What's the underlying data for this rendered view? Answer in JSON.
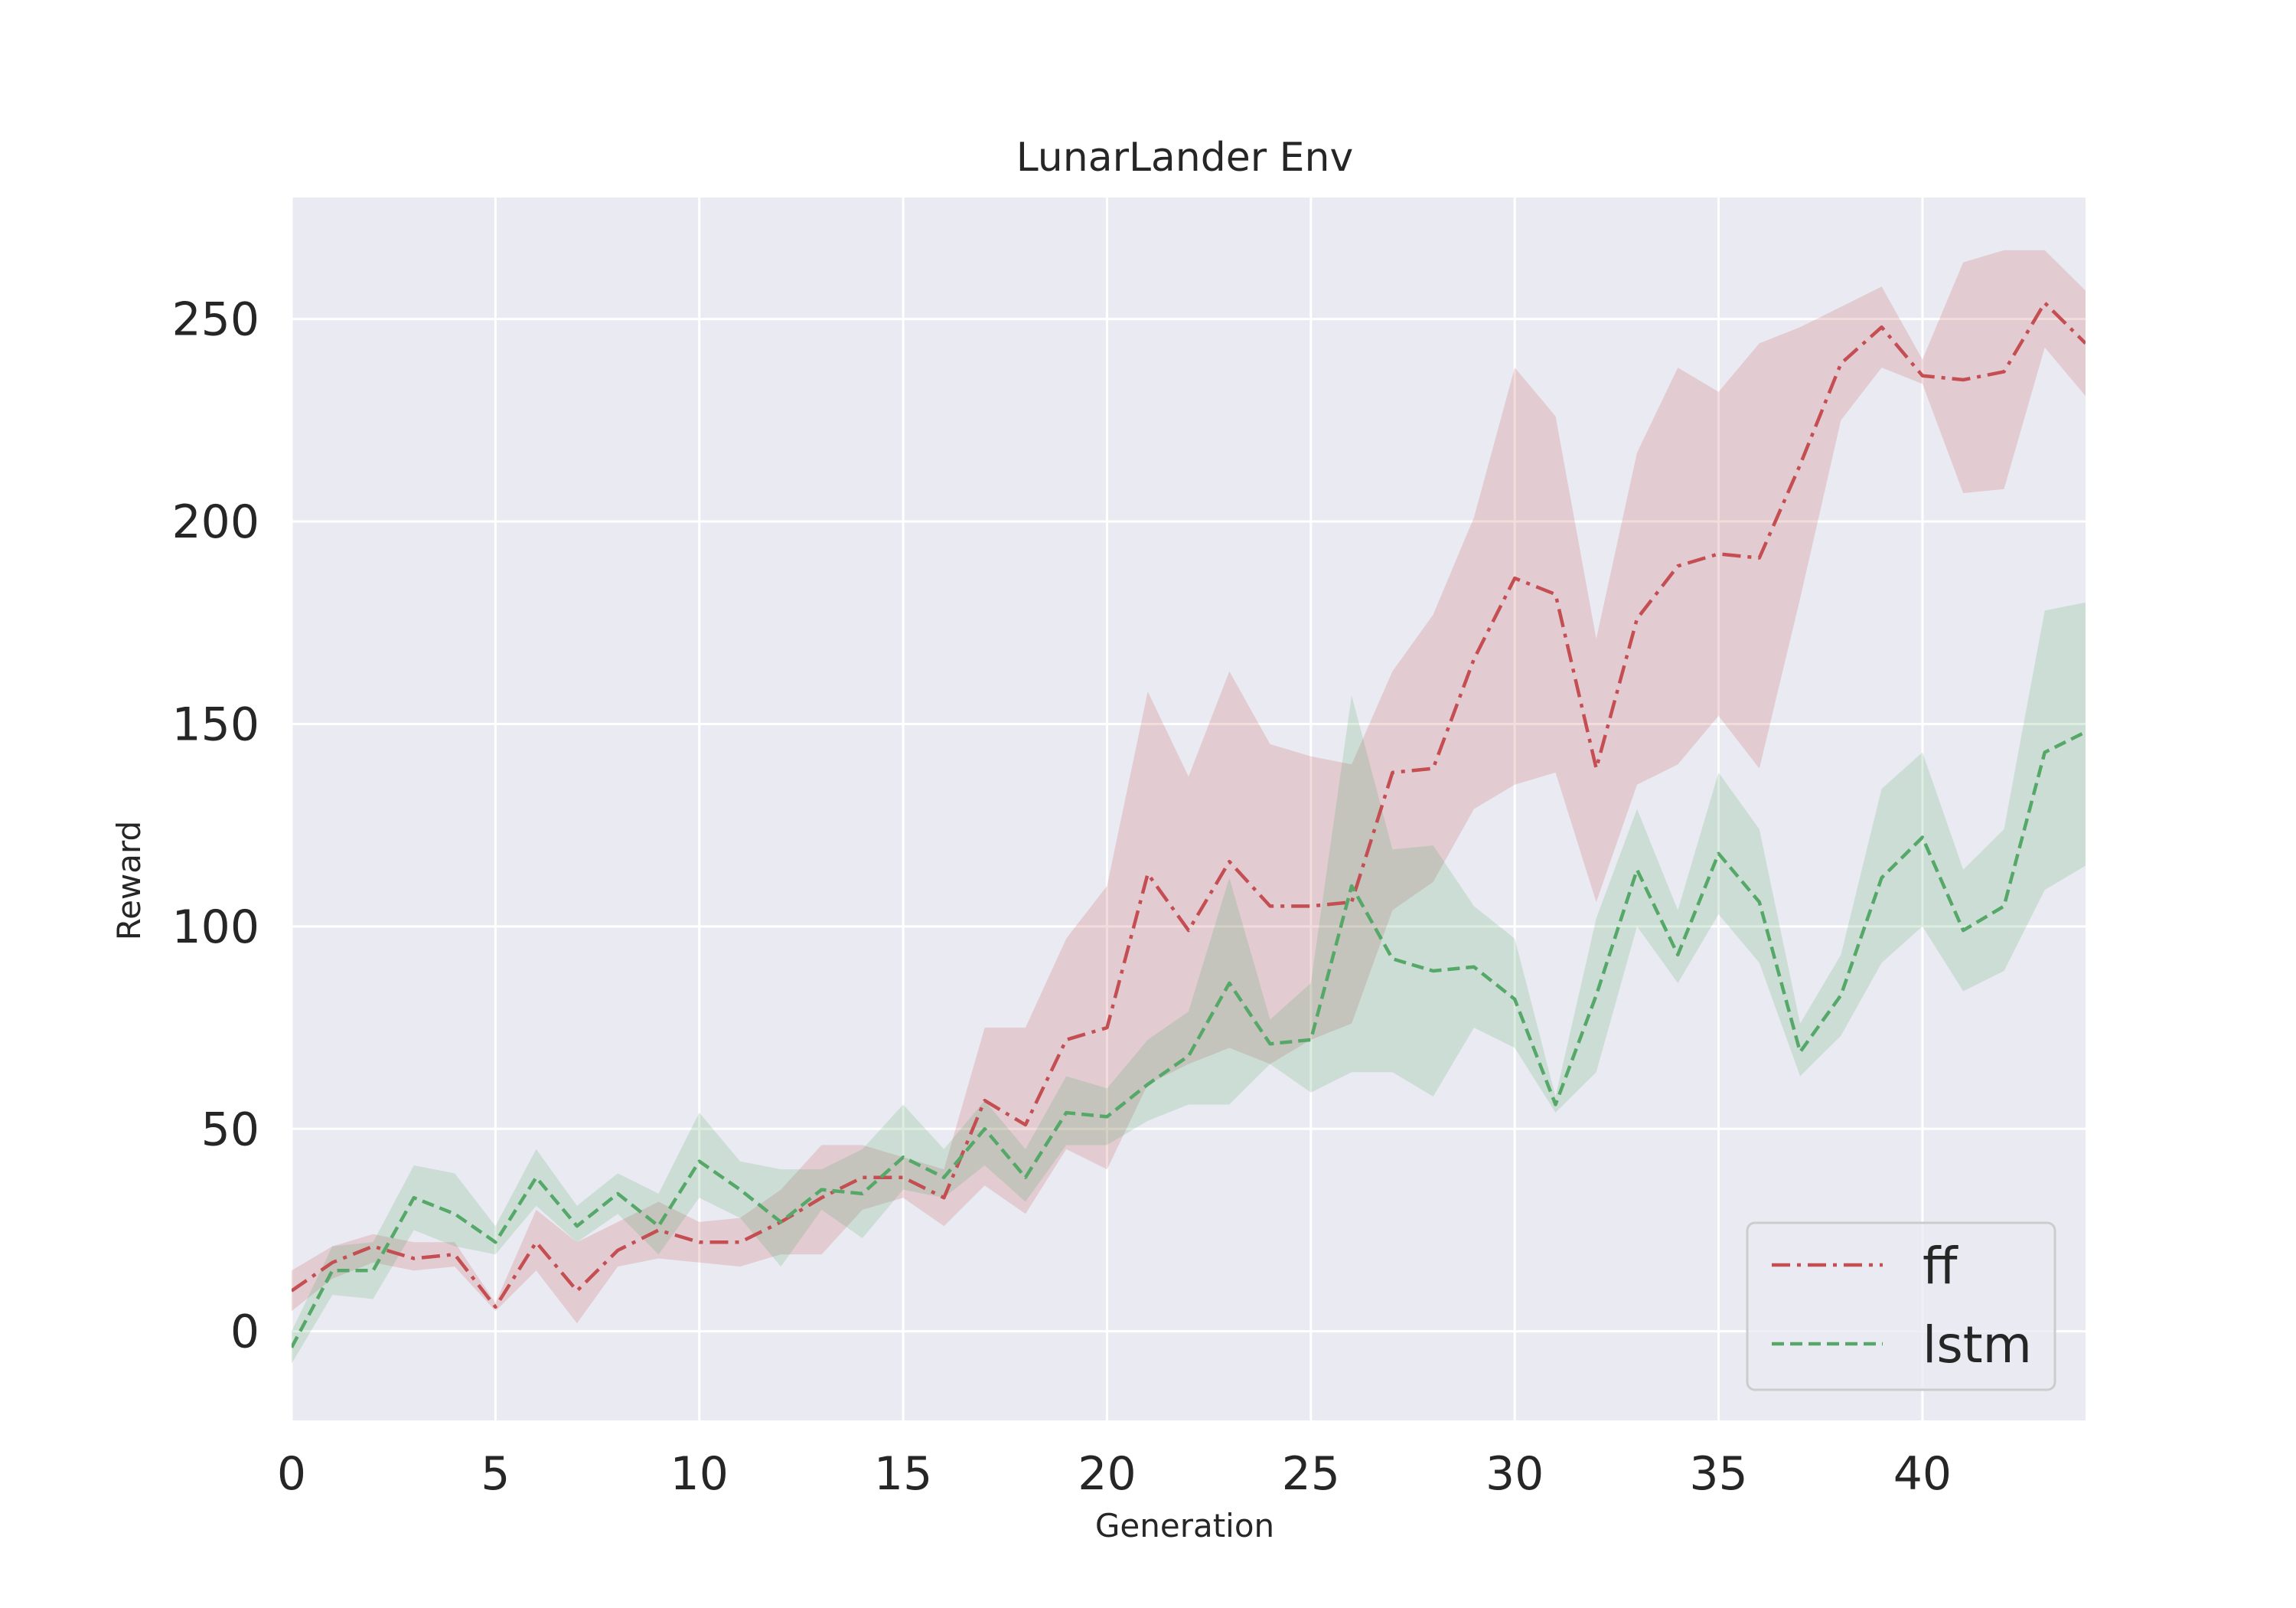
{
  "chart_data": {
    "type": "line",
    "title": "LunarLander Env",
    "xlabel": "Generation",
    "ylabel": "Reward",
    "xlim": [
      0,
      44
    ],
    "ylim": [
      -22,
      280
    ],
    "xticks": [
      0,
      5,
      10,
      15,
      20,
      25,
      30,
      35,
      40
    ],
    "yticks": [
      0,
      50,
      100,
      150,
      200,
      250
    ],
    "grid": true,
    "legend_position": "bottom-right",
    "background_color": "#eaeaf2",
    "grid_color": "#ffffff",
    "series": [
      {
        "name": "ff",
        "color": "#c44e52",
        "linestyle": "dash-dot",
        "x": [
          0,
          1,
          2,
          3,
          4,
          5,
          6,
          7,
          8,
          9,
          10,
          11,
          12,
          13,
          14,
          15,
          16,
          17,
          18,
          19,
          20,
          21,
          22,
          23,
          24,
          25,
          26,
          27,
          28,
          29,
          30,
          31,
          32,
          33,
          34,
          35,
          36,
          37,
          38,
          39,
          40,
          41,
          42,
          43,
          44
        ],
        "mean": [
          10,
          17,
          21,
          18,
          19,
          6,
          22,
          10,
          20,
          25,
          22,
          22,
          27,
          33,
          38,
          38,
          33,
          57,
          51,
          72,
          75,
          113,
          99,
          116,
          105,
          105,
          106,
          138,
          139,
          166,
          186,
          182,
          139,
          176,
          189,
          192,
          191,
          214,
          239,
          248,
          236,
          235,
          237,
          254,
          244
        ],
        "lower": [
          5,
          13,
          17,
          15,
          16,
          5,
          15,
          2,
          16,
          18,
          17,
          16,
          19,
          19,
          30,
          33,
          26,
          36,
          29,
          45,
          40,
          61,
          66,
          70,
          66,
          72,
          76,
          104,
          111,
          129,
          135,
          138,
          106,
          135,
          140,
          152,
          139,
          181,
          225,
          238,
          234,
          207,
          208,
          243,
          231
        ],
        "upper": [
          15,
          21,
          24,
          22,
          22,
          7,
          30,
          22,
          27,
          32,
          27,
          28,
          35,
          46,
          46,
          43,
          40,
          75,
          75,
          97,
          110,
          158,
          137,
          163,
          145,
          142,
          140,
          163,
          177,
          201,
          238,
          226,
          171,
          217,
          238,
          232,
          244,
          248,
          253,
          258,
          240,
          264,
          267,
          267,
          257
        ]
      },
      {
        "name": "lstm",
        "color": "#55a868",
        "linestyle": "dashed",
        "x": [
          0,
          1,
          2,
          3,
          4,
          5,
          6,
          7,
          8,
          9,
          10,
          11,
          12,
          13,
          14,
          15,
          16,
          17,
          18,
          19,
          20,
          21,
          22,
          23,
          24,
          25,
          26,
          27,
          28,
          29,
          30,
          31,
          32,
          33,
          34,
          35,
          36,
          37,
          38,
          39,
          40,
          41,
          42,
          43,
          44
        ],
        "mean": [
          -4,
          15,
          15,
          33,
          29,
          22,
          38,
          26,
          34,
          26,
          42,
          35,
          27,
          35,
          34,
          43,
          38,
          50,
          38,
          54,
          53,
          61,
          68,
          86,
          71,
          72,
          110,
          92,
          89,
          90,
          82,
          56,
          83,
          114,
          93,
          118,
          106,
          69,
          83,
          112,
          122,
          99,
          105,
          143,
          148
        ],
        "lower": [
          -8,
          9,
          8,
          25,
          21,
          19,
          31,
          22,
          29,
          19,
          33,
          28,
          16,
          30,
          23,
          35,
          33,
          41,
          32,
          46,
          46,
          52,
          56,
          56,
          66,
          59,
          64,
          64,
          58,
          75,
          70,
          54,
          64,
          100,
          86,
          103,
          91,
          63,
          73,
          91,
          100,
          84,
          89,
          109,
          115
        ],
        "upper": [
          0,
          21,
          22,
          41,
          39,
          26,
          45,
          31,
          39,
          34,
          54,
          42,
          40,
          40,
          45,
          56,
          45,
          57,
          45,
          63,
          60,
          72,
          79,
          112,
          77,
          86,
          157,
          119,
          120,
          105,
          97,
          58,
          102,
          129,
          104,
          138,
          124,
          76,
          93,
          134,
          143,
          114,
          124,
          178,
          180
        ]
      }
    ]
  }
}
